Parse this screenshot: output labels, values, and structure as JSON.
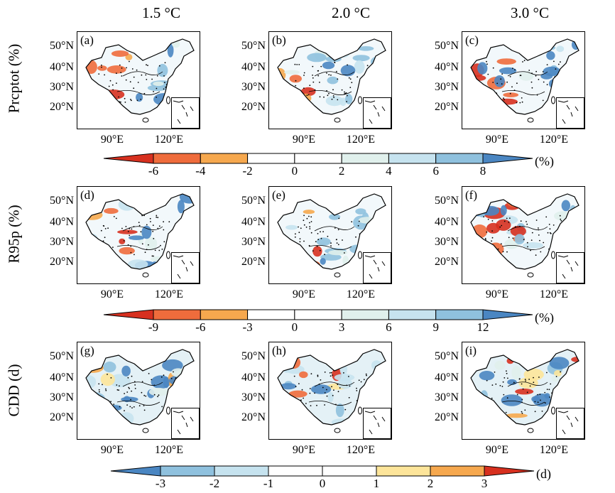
{
  "columns": [
    "1.5 °C",
    "2.0 °C",
    "3.0 °C"
  ],
  "rows": [
    "Prcptot (%)",
    "R95p (%)",
    "CDD (d)"
  ],
  "lat_labels": [
    "50°N",
    "40°N",
    "30°N",
    "20°N"
  ],
  "lon_labels": [
    "90°E",
    "120°E"
  ],
  "colorbar_colors": [
    "#d7301f",
    "#ef6c3c",
    "#f6a84e",
    "#fde59a",
    "#ffffff",
    "#e0f0ec",
    "#c6e3ef",
    "#8fc1de",
    "#4a86c2"
  ],
  "chart_data": [
    {
      "type": "map",
      "panel": "(a)",
      "row": "Prcptot (%)",
      "column": "1.5 °C",
      "colorbar": {
        "ticks": [
          "-6",
          "-4",
          "-2",
          "0",
          "2",
          "4",
          "6",
          "8"
        ],
        "unit": "(%)"
      }
    },
    {
      "type": "map",
      "panel": "(b)",
      "row": "Prcptot (%)",
      "column": "2.0 °C",
      "colorbar": {
        "ticks": [
          "-6",
          "-4",
          "-2",
          "0",
          "2",
          "4",
          "6",
          "8"
        ],
        "unit": "(%)"
      }
    },
    {
      "type": "map",
      "panel": "(c)",
      "row": "Prcptot (%)",
      "column": "3.0 °C",
      "colorbar": {
        "ticks": [
          "-6",
          "-4",
          "-2",
          "0",
          "2",
          "4",
          "6",
          "8"
        ],
        "unit": "(%)"
      }
    },
    {
      "type": "map",
      "panel": "(d)",
      "row": "R95p (%)",
      "column": "1.5 °C",
      "colorbar": {
        "ticks": [
          "-9",
          "-6",
          "-3",
          "0",
          "3",
          "6",
          "9",
          "12"
        ],
        "unit": "(%)"
      }
    },
    {
      "type": "map",
      "panel": "(e)",
      "row": "R95p (%)",
      "column": "2.0 °C",
      "colorbar": {
        "ticks": [
          "-9",
          "-6",
          "-3",
          "0",
          "3",
          "6",
          "9",
          "12"
        ],
        "unit": "(%)"
      }
    },
    {
      "type": "map",
      "panel": "(f)",
      "row": "R95p (%)",
      "column": "3.0 °C",
      "colorbar": {
        "ticks": [
          "-9",
          "-6",
          "-3",
          "0",
          "3",
          "6",
          "9",
          "12"
        ],
        "unit": "(%)"
      }
    },
    {
      "type": "map",
      "panel": "(g)",
      "row": "CDD (d)",
      "column": "1.5 °C",
      "colorbar": {
        "ticks": [
          "-3",
          "-2",
          "-1",
          "0",
          "1",
          "2",
          "3"
        ],
        "unit": "(d)"
      }
    },
    {
      "type": "map",
      "panel": "(h)",
      "row": "CDD (d)",
      "column": "2.0 °C",
      "colorbar": {
        "ticks": [
          "-3",
          "-2",
          "-1",
          "0",
          "1",
          "2",
          "3"
        ],
        "unit": "(d)"
      }
    },
    {
      "type": "map",
      "panel": "(i)",
      "row": "CDD (d)",
      "column": "3.0 °C",
      "colorbar": {
        "ticks": [
          "-3",
          "-2",
          "-1",
          "0",
          "1",
          "2",
          "3"
        ],
        "unit": "(d)"
      }
    }
  ]
}
